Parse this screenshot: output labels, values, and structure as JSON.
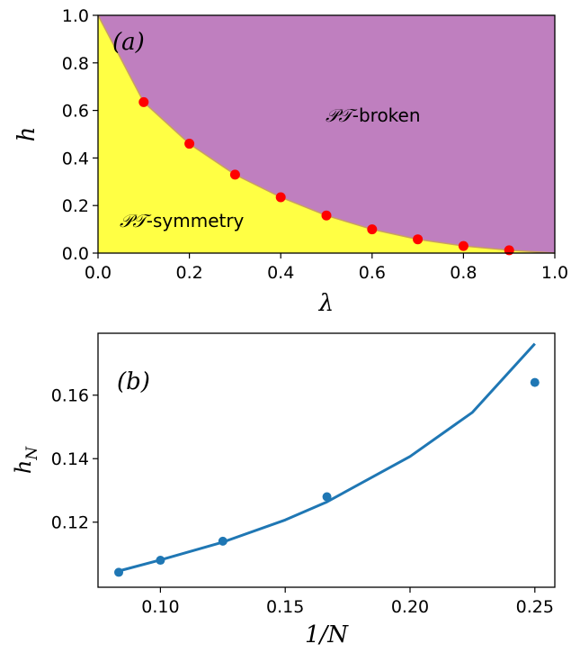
{
  "chart_data": [
    {
      "type": "area",
      "panel_label": "(a)",
      "xlabel": "λ",
      "ylabel": "h",
      "xlim": [
        0.0,
        1.0
      ],
      "ylim": [
        0.0,
        1.0
      ],
      "xticks": [
        "0.0",
        "0.2",
        "0.4",
        "0.6",
        "0.8",
        "1.0"
      ],
      "yticks": [
        "0.0",
        "0.2",
        "0.4",
        "0.6",
        "0.8",
        "1.0"
      ],
      "region_labels": {
        "broken_prefix": "𝒫𝒯",
        "broken_suffix": "-broken",
        "symmetry_prefix": "𝒫𝒯",
        "symmetry_suffix": "-symmetry"
      },
      "colors": {
        "broken": "#bf7fbf",
        "symmetry": "#ffff44",
        "points": "#ff0000",
        "boundary": "#c8a060"
      },
      "boundary_x": [
        0.0,
        0.1,
        0.2,
        0.3,
        0.4,
        0.5,
        0.6,
        0.7,
        0.8,
        0.9,
        1.0
      ],
      "boundary_y": [
        1.0,
        0.635,
        0.46,
        0.33,
        0.235,
        0.158,
        0.1,
        0.058,
        0.03,
        0.012,
        0.0
      ],
      "points": {
        "x": [
          0.1,
          0.2,
          0.3,
          0.4,
          0.5,
          0.6,
          0.7,
          0.8,
          0.9
        ],
        "y": [
          0.635,
          0.46,
          0.33,
          0.235,
          0.158,
          0.1,
          0.058,
          0.03,
          0.012
        ]
      }
    },
    {
      "type": "scatter",
      "panel_label": "(b)",
      "xlabel": "1/N",
      "ylabel": "h_N",
      "xlim": [
        0.075,
        0.258
      ],
      "ylim": [
        0.0995,
        0.1795
      ],
      "xticks": [
        "0.10",
        "0.15",
        "0.20",
        "0.25"
      ],
      "yticks": [
        "0.12",
        "0.14",
        "0.16"
      ],
      "colors": {
        "series": "#1f77b4"
      },
      "points": {
        "x": [
          0.0833,
          0.1,
          0.125,
          0.1667,
          0.25
        ],
        "y": [
          0.1042,
          0.108,
          0.114,
          0.128,
          0.164
        ]
      },
      "fit_curve": {
        "x": [
          0.0833,
          0.1,
          0.125,
          0.15,
          0.1667,
          0.2,
          0.225,
          0.25
        ],
        "y": [
          0.1046,
          0.1081,
          0.1137,
          0.1207,
          0.1264,
          0.1407,
          0.1546,
          0.1762
        ]
      }
    }
  ]
}
